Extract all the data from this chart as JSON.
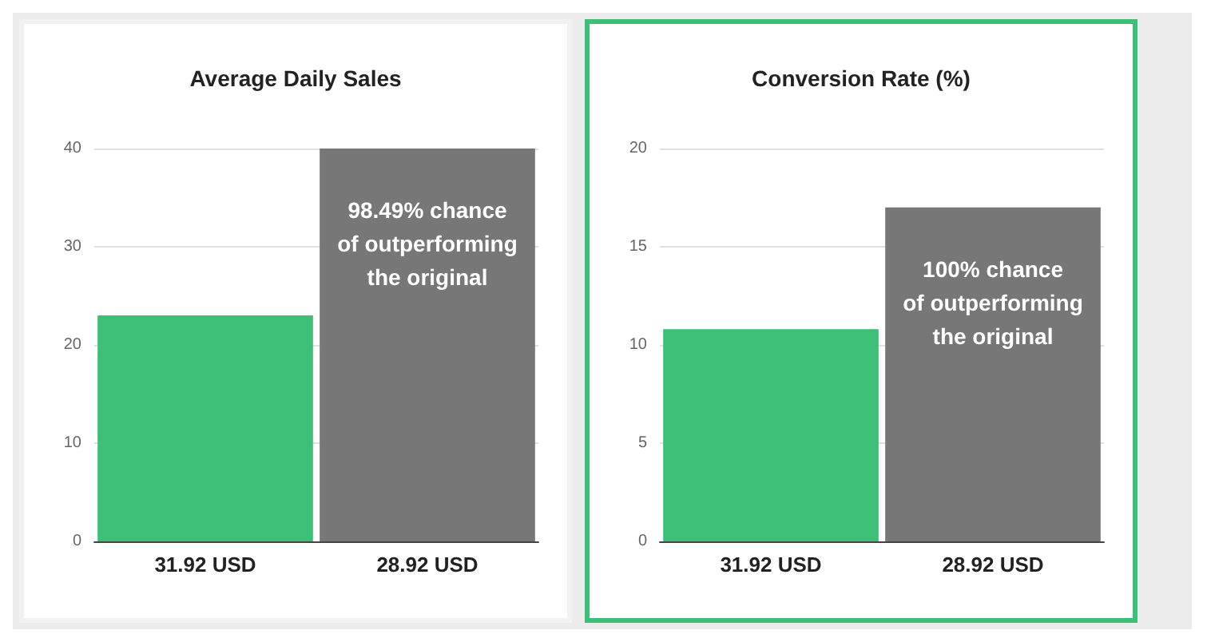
{
  "chart_data": [
    {
      "type": "bar",
      "title": "Average Daily Sales",
      "categories": [
        "31.92 USD",
        "28.92 USD"
      ],
      "values": [
        23,
        40
      ],
      "colors": [
        "#3dbf78",
        "#777777"
      ],
      "ylim": [
        0,
        40
      ],
      "yticks": [
        0,
        10,
        20,
        30,
        40
      ],
      "grid": "y",
      "annotations": [
        "98.49% chance\nof outperforming\nthe original"
      ]
    },
    {
      "type": "bar",
      "title": "Conversion Rate (%)",
      "categories": [
        "31.92 USD",
        "28.92 USD"
      ],
      "values": [
        10.8,
        17
      ],
      "colors": [
        "#3dbf78",
        "#777777"
      ],
      "ylim": [
        0,
        20
      ],
      "yticks": [
        0,
        5,
        10,
        15,
        20
      ],
      "grid": "y",
      "annotations": [
        "100% chance\nof outperforming\nthe original"
      ]
    }
  ]
}
